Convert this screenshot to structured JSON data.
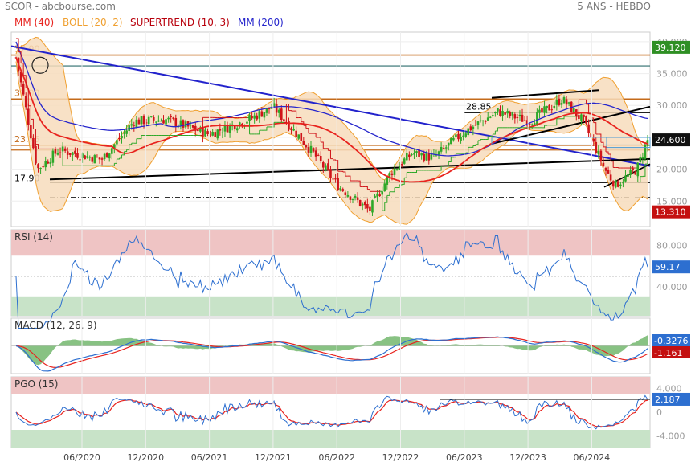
{
  "header": {
    "source": "SCOR - abcbourse.com",
    "period": "5 ANS - HEBDO"
  },
  "legend": [
    {
      "label": "MM (40)",
      "color": "#e8231e"
    },
    {
      "label": "BOLL (20, 2)",
      "color": "#f0a030"
    },
    {
      "label": "SUPERTREND (10, 3)",
      "color": "#b8000c"
    },
    {
      "label": "MM (200)",
      "color": "#2626cc"
    }
  ],
  "colors": {
    "up": "#2fa829",
    "down": "#d0141a",
    "boll": "#f0a030",
    "bollFill": "#f7dcbc",
    "mm40": "#e8231e",
    "mm200": "#2626cc",
    "trend": "#2222cc",
    "black": "#000000",
    "level": "#c46a1a",
    "macdLine": "#2d6fd0",
    "signal": "#e8231e",
    "hist": "#60ad59",
    "obZone": "#efc4c4",
    "osZone": "#c8e3c8",
    "lastPrice": "#2d6fd0",
    "green": "#2f8f24",
    "red": "#c41010"
  },
  "x_ticks": [
    "06/2020",
    "12/2020",
    "06/2021",
    "12/2021",
    "06/2022",
    "12/2022",
    "06/2023",
    "12/2023",
    "06/2024"
  ],
  "chart_data": [
    {
      "type": "candlestick",
      "panel": "price",
      "y_ticks": [
        15,
        20,
        25,
        30,
        35,
        40
      ],
      "y_tick_labels": [
        "15.000",
        "20.000",
        "25.000",
        "30.000",
        "35.000",
        "40.000"
      ],
      "ylim": [
        11,
        41.5
      ],
      "badges": [
        {
          "value": 39.12,
          "text": "39.120",
          "color": "green"
        },
        {
          "value": 24.6,
          "text": "24.600",
          "color": "black"
        },
        {
          "value": 13.31,
          "text": "13.310",
          "color": "red"
        }
      ],
      "levels": [
        {
          "value": 37.9,
          "label": "37.90"
        },
        {
          "value": 31.0,
          "label": "31.00"
        },
        {
          "value": 23.75,
          "label": "23.75"
        },
        {
          "value": 17.9,
          "label": "17.90"
        },
        {
          "value": 28.85,
          "label": "28.85"
        }
      ],
      "anchors": [
        {
          "date": "2020-01",
          "close": 37.5
        },
        {
          "date": "2020-03",
          "close": 20.0
        },
        {
          "date": "2020-05",
          "close": 23.0
        },
        {
          "date": "2020-09",
          "close": 21.5
        },
        {
          "date": "2020-12",
          "close": 27.5
        },
        {
          "date": "2021-03",
          "close": 27.8
        },
        {
          "date": "2021-07",
          "close": 25.5
        },
        {
          "date": "2021-11",
          "close": 28.0
        },
        {
          "date": "2022-01",
          "close": 29.8
        },
        {
          "date": "2022-03",
          "close": 26.0
        },
        {
          "date": "2022-05",
          "close": 22.0
        },
        {
          "date": "2022-07",
          "close": 17.5
        },
        {
          "date": "2022-10",
          "close": 13.5
        },
        {
          "date": "2022-12",
          "close": 19.5
        },
        {
          "date": "2023-02",
          "close": 22.5
        },
        {
          "date": "2023-04",
          "close": 21.8
        },
        {
          "date": "2023-07",
          "close": 26.0
        },
        {
          "date": "2023-10",
          "close": 29.0
        },
        {
          "date": "2024-01",
          "close": 27.5
        },
        {
          "date": "2024-04",
          "close": 31.0
        },
        {
          "date": "2024-06",
          "close": 27.5
        },
        {
          "date": "2024-08",
          "close": 20.0
        },
        {
          "date": "2024-09",
          "close": 17.5
        },
        {
          "date": "2024-11",
          "close": 20.0
        },
        {
          "date": "2024-12",
          "close": 24.6
        }
      ]
    },
    {
      "type": "line",
      "panel": "rsi",
      "title": "RSI (14)",
      "y_ticks": [
        40,
        80
      ],
      "y_tick_labels": [
        "40.000",
        "80.000"
      ],
      "ylim": [
        12,
        95
      ],
      "zones": {
        "overbought": 70,
        "oversold": 30,
        "mid": 50
      },
      "last": {
        "text": "59.17",
        "value": 59.17
      }
    },
    {
      "type": "line",
      "panel": "macd",
      "title": "MACD (12, 26, 9)",
      "series": [
        "MACD",
        "Signal",
        "Histogram"
      ],
      "last": [
        {
          "text": "-0.3276",
          "color": "macdLine"
        },
        {
          "text": "-1.161",
          "color": "red"
        }
      ]
    },
    {
      "type": "line",
      "panel": "pgo",
      "title": "PGO (15)",
      "y_ticks": [
        4,
        0,
        -4
      ],
      "y_tick_labels": [
        "4.000",
        "0",
        "-4.000"
      ],
      "ylim": [
        -6,
        6
      ],
      "zones": {
        "overbought": 3,
        "oversold": -3
      },
      "last": {
        "text": "2.187",
        "value": 2.187
      }
    }
  ]
}
